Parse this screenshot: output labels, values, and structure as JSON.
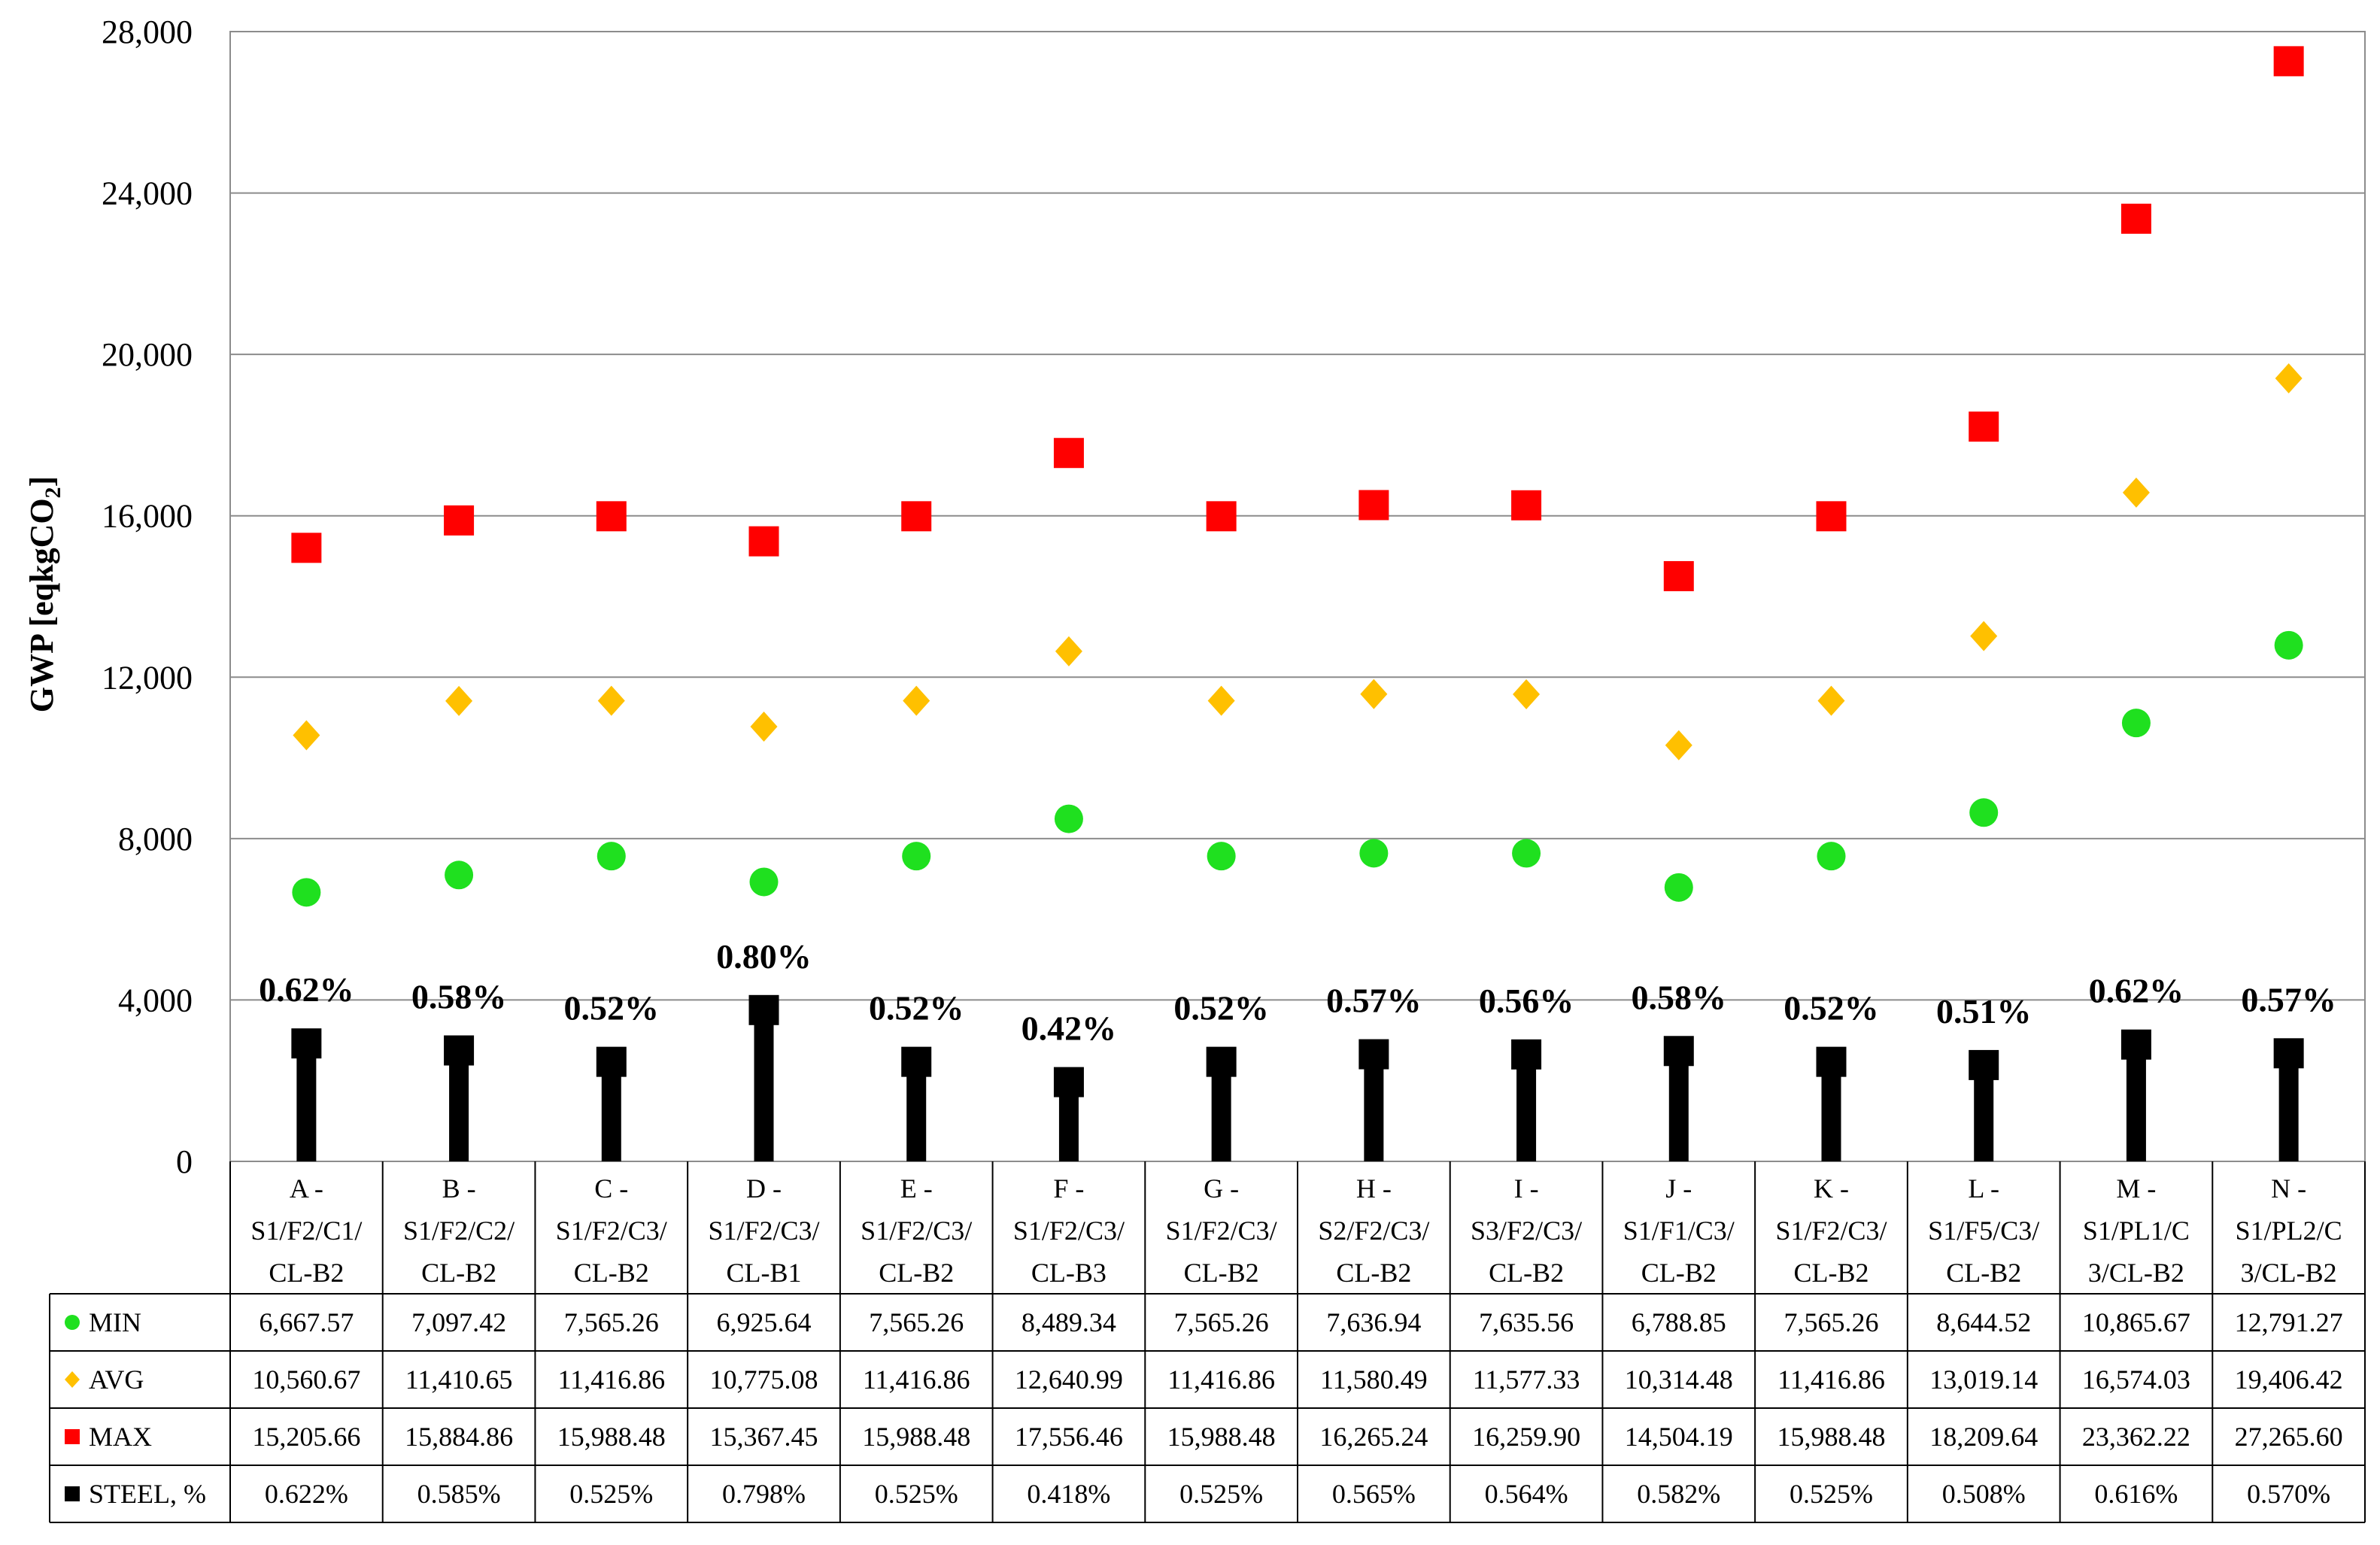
{
  "chart_data": {
    "type": "scatter",
    "ylabel": "GWP [eqkgCO",
    "ylabel_sub": "2",
    "ylim": [
      0,
      28000
    ],
    "yticks": [
      0,
      4000,
      8000,
      12000,
      16000,
      20000,
      24000,
      28000
    ],
    "ytick_labels": [
      "0",
      "4,000",
      "8,000",
      "12,000",
      "16,000",
      "20,000",
      "24,000",
      "28,000"
    ],
    "grid": true,
    "categories": [
      [
        "A -",
        "S1/F2/C1/",
        "CL-B2"
      ],
      [
        "B -",
        "S1/F2/C2/",
        "CL-B2"
      ],
      [
        "C -",
        "S1/F2/C3/",
        "CL-B2"
      ],
      [
        "D -",
        "S1/F2/C3/",
        "CL-B1"
      ],
      [
        "E -",
        "S1/F2/C3/",
        "CL-B2"
      ],
      [
        "F -",
        "S1/F2/C3/",
        "CL-B3"
      ],
      [
        "G -",
        "S1/F2/C3/",
        "CL-B2"
      ],
      [
        "H -",
        "S2/F2/C3/",
        "CL-B2"
      ],
      [
        "I -",
        "S3/F2/C3/",
        "CL-B2"
      ],
      [
        "J -",
        "S1/F1/C3/",
        "CL-B2"
      ],
      [
        "K -",
        "S1/F2/C3/",
        "CL-B2"
      ],
      [
        "L -",
        "S1/F5/C3/",
        "CL-B2"
      ],
      [
        "M -",
        "S1/PL1/C",
        "3/CL-B2"
      ],
      [
        "N -",
        "S1/PL2/C",
        "3/CL-B2"
      ]
    ],
    "series": [
      {
        "name": "MIN",
        "marker": "circle",
        "color": "#1fe01f",
        "values": [
          6667.57,
          7097.42,
          7565.26,
          6925.64,
          7565.26,
          8489.34,
          7565.26,
          7636.94,
          7635.56,
          6788.85,
          7565.26,
          8644.52,
          10865.67,
          12791.27
        ],
        "labels": [
          "6,667.57",
          "7,097.42",
          "7,565.26",
          "6,925.64",
          "7,565.26",
          "8,489.34",
          "7,565.26",
          "7,636.94",
          "7,635.56",
          "6,788.85",
          "7,565.26",
          "8,644.52",
          "10,865.67",
          "12,791.27"
        ]
      },
      {
        "name": "AVG",
        "marker": "diamond",
        "color": "#ffc000",
        "values": [
          10560.67,
          11410.65,
          11416.86,
          10775.08,
          11416.86,
          12640.99,
          11416.86,
          11580.49,
          11577.33,
          10314.48,
          11416.86,
          13019.14,
          16574.03,
          19406.42
        ],
        "labels": [
          "10,560.67",
          "11,410.65",
          "11,416.86",
          "10,775.08",
          "11,416.86",
          "12,640.99",
          "11,416.86",
          "11,580.49",
          "11,577.33",
          "10,314.48",
          "11,416.86",
          "13,019.14",
          "16,574.03",
          "19,406.42"
        ]
      },
      {
        "name": "MAX",
        "marker": "square",
        "color": "#ff0000",
        "values": [
          15205.66,
          15884.86,
          15988.48,
          15367.45,
          15988.48,
          17556.46,
          15988.48,
          16265.24,
          16259.9,
          14504.19,
          15988.48,
          18209.64,
          23362.22,
          27265.6
        ],
        "labels": [
          "15,205.66",
          "15,884.86",
          "15,988.48",
          "15,367.45",
          "15,988.48",
          "17,556.46",
          "15,988.48",
          "16,265.24",
          "16,259.90",
          "14,504.19",
          "15,988.48",
          "18,209.64",
          "23,362.22",
          "27,265.60"
        ]
      },
      {
        "name": "STEEL, %",
        "marker": "square-stem",
        "color": "#000000",
        "values": [
          0.622,
          0.585,
          0.525,
          0.798,
          0.525,
          0.418,
          0.525,
          0.565,
          0.564,
          0.582,
          0.525,
          0.508,
          0.616,
          0.57
        ],
        "labels": [
          "0.622%",
          "0.585%",
          "0.525%",
          "0.798%",
          "0.525%",
          "0.418%",
          "0.525%",
          "0.565%",
          "0.564%",
          "0.582%",
          "0.525%",
          "0.508%",
          "0.616%",
          "0.570%"
        ],
        "point_labels": [
          "0.62%",
          "0.58%",
          "0.52%",
          "0.80%",
          "0.52%",
          "0.42%",
          "0.52%",
          "0.57%",
          "0.56%",
          "0.58%",
          "0.52%",
          "0.51%",
          "0.62%",
          "0.57%"
        ]
      }
    ],
    "legend": "data-table"
  }
}
